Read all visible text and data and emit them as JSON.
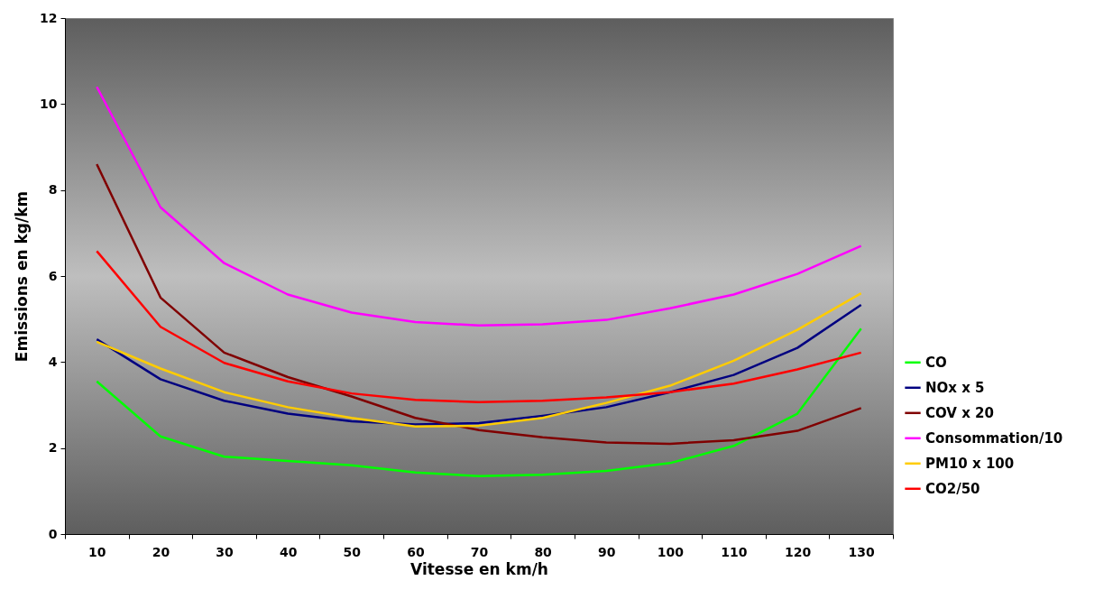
{
  "chart_data": {
    "type": "line",
    "xlabel": "Vitesse en km/h",
    "ylabel": "Emissions en kg/km",
    "categories": [
      "10",
      "20",
      "30",
      "40",
      "50",
      "60",
      "70",
      "80",
      "90",
      "100",
      "110",
      "120",
      "130"
    ],
    "ylim": [
      0,
      12
    ],
    "yticks": [
      0,
      2,
      4,
      6,
      8,
      10,
      12
    ],
    "grid": false,
    "legend": "right",
    "marker": "none",
    "line_style": "solid",
    "series": [
      {
        "name": "CO",
        "color": "#00ff00",
        "values": [
          3.55,
          2.27,
          1.8,
          1.7,
          1.6,
          1.43,
          1.35,
          1.38,
          1.47,
          1.65,
          2.05,
          2.8,
          4.78
        ]
      },
      {
        "name": "NOx x 5",
        "color": "#000080",
        "values": [
          4.53,
          3.6,
          3.1,
          2.8,
          2.62,
          2.55,
          2.58,
          2.75,
          2.95,
          3.3,
          3.7,
          4.33,
          5.33
        ]
      },
      {
        "name": "COV x 20",
        "color": "#800000",
        "values": [
          8.6,
          5.5,
          4.22,
          3.65,
          3.2,
          2.7,
          2.42,
          2.25,
          2.13,
          2.1,
          2.18,
          2.4,
          2.93
        ]
      },
      {
        "name": "Consommation/10",
        "color": "#ff00ff",
        "values": [
          10.4,
          7.6,
          6.3,
          5.57,
          5.15,
          4.93,
          4.85,
          4.88,
          4.98,
          5.25,
          5.57,
          6.05,
          6.7
        ]
      },
      {
        "name": "PM10 x 100",
        "color": "#ffcc00",
        "values": [
          4.47,
          3.85,
          3.3,
          2.95,
          2.7,
          2.5,
          2.52,
          2.7,
          3.05,
          3.45,
          4.03,
          4.75,
          5.6
        ]
      },
      {
        "name": "CO2/50",
        "color": "#ff0000",
        "values": [
          6.58,
          4.82,
          3.98,
          3.55,
          3.27,
          3.12,
          3.07,
          3.1,
          3.18,
          3.3,
          3.5,
          3.83,
          4.22
        ]
      }
    ]
  }
}
